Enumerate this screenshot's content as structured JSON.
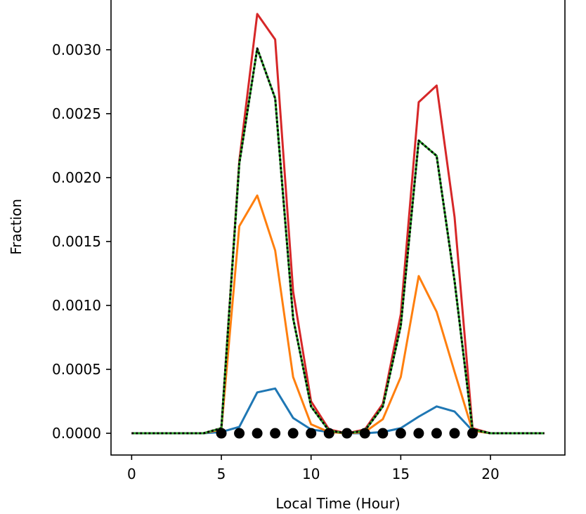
{
  "chart_data": {
    "type": "line",
    "title": "",
    "xlabel": "Local Time (Hour)",
    "ylabel": "Fraction",
    "xlim": [
      -1.15,
      24.15
    ],
    "ylim": [
      -0.00017,
      0.0034
    ],
    "xticks": [
      0,
      5,
      10,
      15,
      20
    ],
    "yticks": [
      0.0,
      0.0005,
      0.001,
      0.0015,
      0.002,
      0.0025,
      0.003
    ],
    "xtick_labels": [
      "0",
      "5",
      "10",
      "15",
      "20"
    ],
    "ytick_labels": [
      "0.0000",
      "0.0005",
      "0.0010",
      "0.0015",
      "0.0020",
      "0.0025",
      "0.0030"
    ],
    "grid": false,
    "x": [
      0,
      1,
      2,
      3,
      4,
      5,
      6,
      7,
      8,
      9,
      10,
      11,
      12,
      13,
      14,
      15,
      16,
      17,
      18,
      19,
      20,
      21,
      22,
      23
    ],
    "series": [
      {
        "color": "#1f77b4",
        "style": "solid",
        "values": [
          0,
          0,
          0,
          0,
          0,
          1e-05,
          5e-05,
          0.00032,
          0.00035,
          0.00012,
          3e-05,
          1e-05,
          0,
          0,
          1e-05,
          4e-05,
          0.00013,
          0.00021,
          0.00017,
          2e-05,
          0,
          0,
          0,
          0
        ]
      },
      {
        "color": "#ff7f0e",
        "style": "solid",
        "values": [
          0,
          0,
          0,
          0,
          0,
          3e-05,
          0.00162,
          0.00186,
          0.00143,
          0.00044,
          7e-05,
          1e-05,
          0,
          1e-05,
          0.00011,
          0.00044,
          0.00123,
          0.00095,
          0.00048,
          2e-05,
          0,
          0,
          0,
          0
        ]
      },
      {
        "color": "#d62728",
        "style": "solid",
        "values": [
          0,
          0,
          0,
          0,
          0,
          4e-05,
          0.00213,
          0.00328,
          0.00308,
          0.00111,
          0.00025,
          3e-05,
          0,
          3e-05,
          0.00023,
          0.00093,
          0.00259,
          0.00272,
          0.00169,
          4e-05,
          0,
          0,
          0,
          0
        ]
      },
      {
        "color": "#2ca02c",
        "style": "solid",
        "values": [
          0,
          0,
          0,
          0,
          0,
          4e-05,
          0.00211,
          0.00301,
          0.00262,
          0.0009,
          0.00021,
          2e-05,
          0,
          2e-05,
          0.00021,
          0.00084,
          0.00229,
          0.00217,
          0.00119,
          3e-05,
          0,
          0,
          0,
          0
        ]
      },
      {
        "color": "#000000",
        "style": "dotted",
        "values": [
          0,
          0,
          0,
          0,
          0,
          4e-05,
          0.00211,
          0.00301,
          0.00262,
          0.0009,
          0.00021,
          2e-05,
          0,
          2e-05,
          0.00021,
          0.00084,
          0.00229,
          0.00217,
          0.00119,
          3e-05,
          0,
          0,
          0,
          0
        ]
      }
    ],
    "markers": {
      "color": "#000000",
      "x": [
        5,
        6,
        7,
        8,
        9,
        10,
        11,
        12,
        13,
        14,
        15,
        16,
        17,
        18,
        19
      ],
      "y": [
        0,
        0,
        0,
        0,
        0,
        0,
        0,
        0,
        0,
        0,
        0,
        0,
        0,
        0,
        0
      ]
    }
  }
}
